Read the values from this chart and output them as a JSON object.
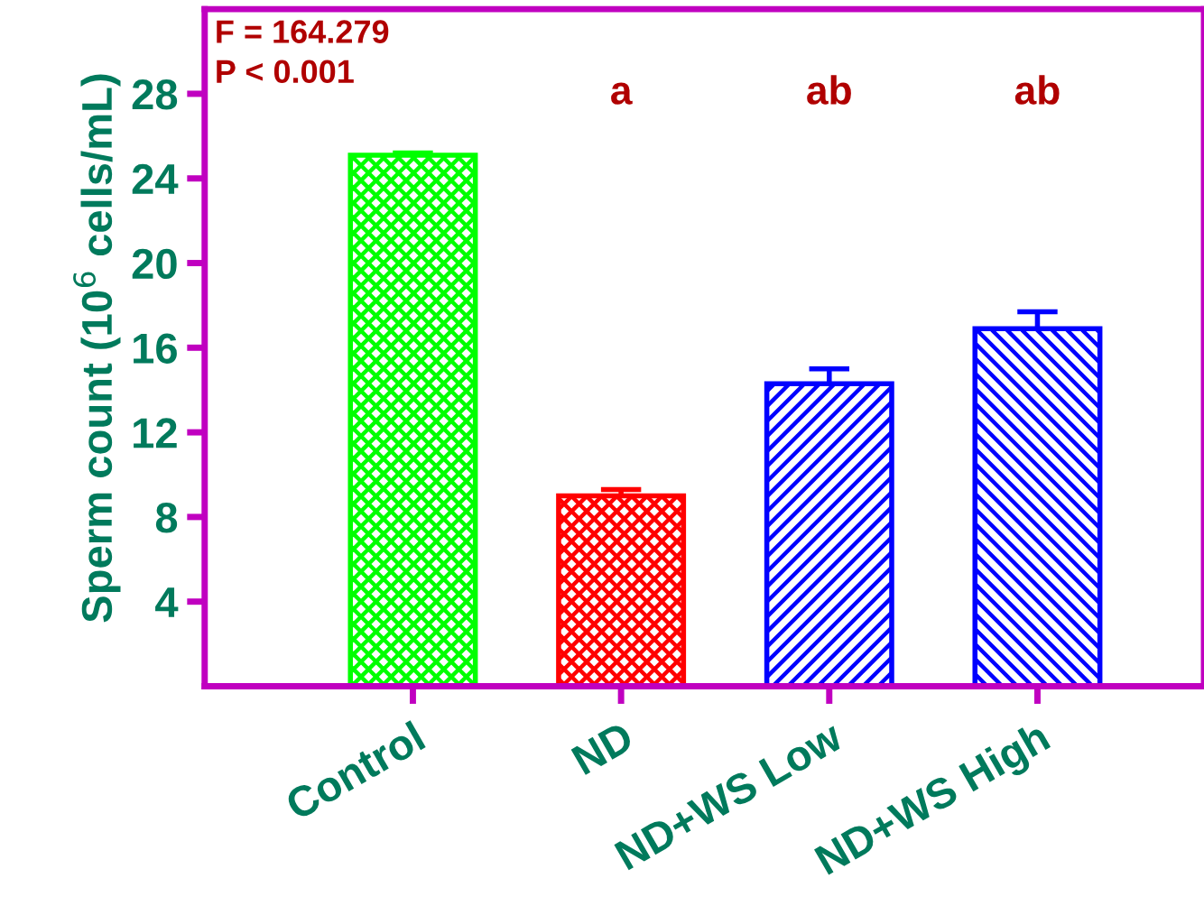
{
  "chart_data": {
    "type": "bar",
    "ylabel": "Sperm count (10$^{6}$ cells/mL)",
    "categories": [
      "Control",
      "ND",
      "ND+WS Low",
      "ND+WS High"
    ],
    "values": [
      25.1,
      9.0,
      14.3,
      16.9
    ],
    "errors": [
      0.1,
      0.3,
      0.7,
      0.8
    ],
    "colors": [
      "#00ff00",
      "#ff0000",
      "#0000ff",
      "#0000ff"
    ],
    "ylim": [
      0,
      32
    ],
    "yticks": [
      4,
      8,
      12,
      16,
      20,
      24,
      28
    ],
    "grid": false,
    "legend": false,
    "annotations": [
      "F = 164.279\nP < 0.001",
      "a",
      "ab",
      "ab"
    ]
  }
}
